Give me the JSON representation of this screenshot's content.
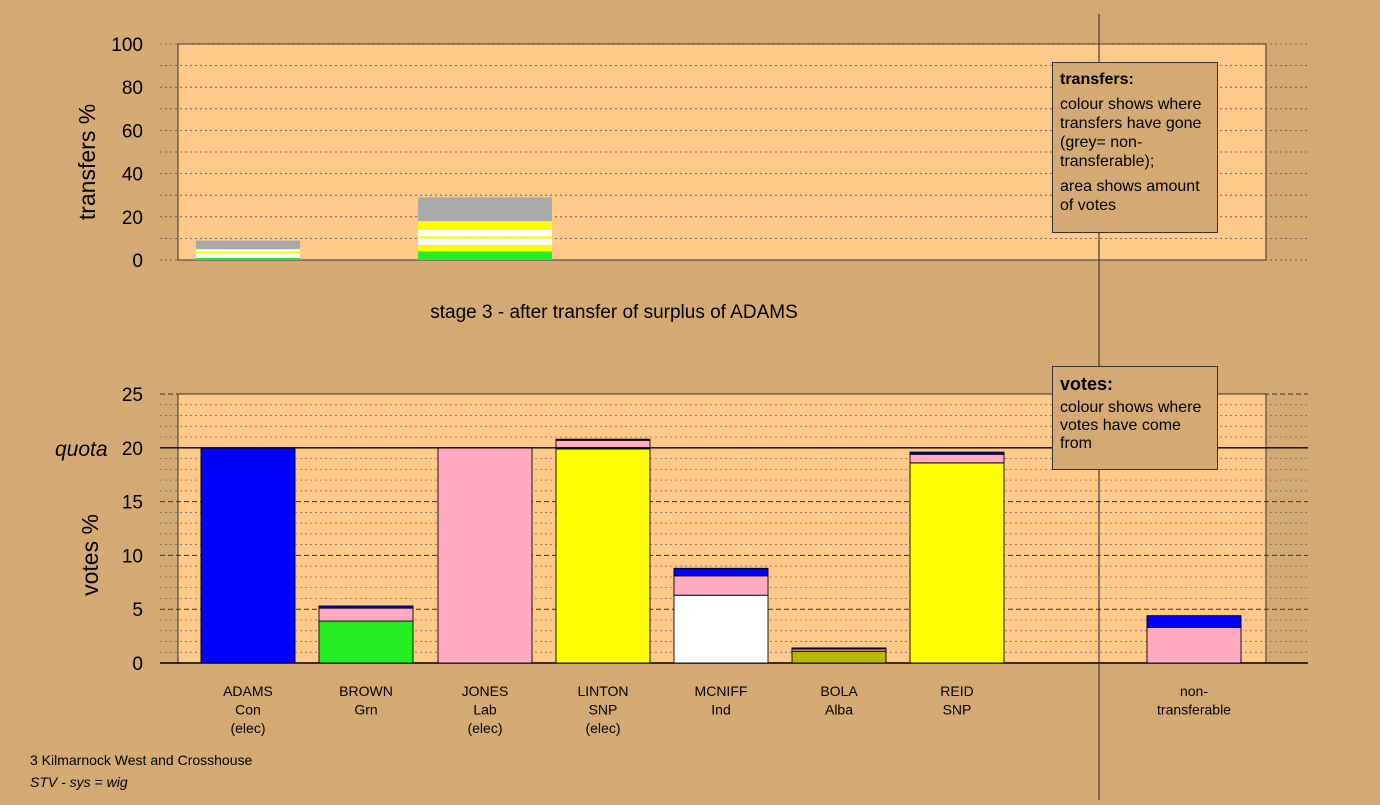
{
  "chart_data": [
    {
      "type": "bar",
      "stacked": true,
      "title": "stage 3 - after transfer of surplus of ADAMS",
      "ylabel": "transfers %",
      "ylim": [
        0,
        100
      ],
      "yticks": [
        0,
        20,
        40,
        60,
        80,
        100
      ],
      "grid": "dotted every 10",
      "bars": [
        {
          "category_index": 0,
          "segments": [
            {
              "from": "BROWN",
              "color": "#22ee22",
              "value": 1
            },
            {
              "from": "MCNIFF",
              "color": "#ffffff",
              "value": 2
            },
            {
              "from": "LINTON",
              "color": "#ffff00",
              "value": 1
            },
            {
              "from": "REID",
              "color": "#ffffff",
              "value": 1
            },
            {
              "from": "non-transferable",
              "color": "#aaaaaa",
              "value": 4
            }
          ]
        },
        {
          "category_index": 1,
          "segments": [
            {
              "from": "BROWN",
              "color": "#22ee22",
              "value": 4
            },
            {
              "from": "LINTON",
              "color": "#ffff00",
              "value": 3
            },
            {
              "from": "MCNIFF",
              "color": "#ffffff",
              "value": 3
            },
            {
              "from": "REID",
              "color": "#ffff00",
              "value": 1
            },
            {
              "from": "other",
              "color": "#ffffff",
              "value": 3
            },
            {
              "from": "LINTON",
              "color": "#ffff00",
              "value": 4
            },
            {
              "from": "non-transferable",
              "color": "#aaaaaa",
              "value": 11
            }
          ]
        }
      ]
    },
    {
      "type": "bar",
      "stacked": true,
      "ylabel": "votes %",
      "ylim": [
        0,
        25
      ],
      "yticks": [
        0,
        5,
        10,
        15,
        20,
        25
      ],
      "quota": 20,
      "quota_label": "quota",
      "grid": "dashed every 5, dotted every 1",
      "categories": [
        {
          "name": "ADAMS",
          "party": "Con",
          "status": "(elec)"
        },
        {
          "name": "BROWN",
          "party": "Grn",
          "status": ""
        },
        {
          "name": "JONES",
          "party": "Lab",
          "status": "(elec)"
        },
        {
          "name": "LINTON",
          "party": "SNP",
          "status": "(elec)"
        },
        {
          "name": "MCNIFF",
          "party": "Ind",
          "status": ""
        },
        {
          "name": "BOLA",
          "party": "Alba",
          "status": ""
        },
        {
          "name": "REID",
          "party": "SNP",
          "status": ""
        },
        {
          "name": "non-\ntransferable",
          "party": "",
          "status": ""
        }
      ],
      "stacks": [
        [
          {
            "color": "#0000ff",
            "value": 20
          }
        ],
        [
          {
            "color": "#22ee22",
            "value": 3.9
          },
          {
            "color": "#ffaac0",
            "value": 1.2
          },
          {
            "color": "#0000ff",
            "value": 0.2
          }
        ],
        [
          {
            "color": "#ffaac0",
            "value": 20
          }
        ],
        [
          {
            "color": "#ffff00",
            "value": 19.9
          },
          {
            "color": "#ffaac0",
            "value": 0.8
          },
          {
            "color": "#0000ff",
            "value": 0.1
          }
        ],
        [
          {
            "color": "#ffffff",
            "value": 6.3
          },
          {
            "color": "#ffaac0",
            "value": 1.8
          },
          {
            "color": "#0000ff",
            "value": 0.7
          }
        ],
        [
          {
            "color": "#b8b800",
            "value": 1.1
          },
          {
            "color": "#ffaac0",
            "value": 0.2
          },
          {
            "color": "#0000ff",
            "value": 0.1
          }
        ],
        [
          {
            "color": "#ffff00",
            "value": 18.6
          },
          {
            "color": "#ffaac0",
            "value": 0.8
          },
          {
            "color": "#0000ff",
            "value": 0.2
          }
        ],
        [
          {
            "color": "#ffaac0",
            "value": 3.3
          },
          {
            "color": "#0000ff",
            "value": 1.1
          }
        ]
      ]
    }
  ],
  "legend_transfers": {
    "title": "transfers:",
    "desc1": "colour shows where transfers have gone (grey= non-transferable);",
    "desc2": "area shows amount of votes"
  },
  "legend_votes": {
    "title": "votes:",
    "desc": "colour shows where votes have come from"
  },
  "footer": {
    "ward": "3 Kilmarnock West and Crosshouse",
    "system": "STV - sys = wig"
  },
  "colors": {
    "background": "#d4a973",
    "plot_background": "#ffc98a",
    "grey": "#aaaaaa"
  }
}
